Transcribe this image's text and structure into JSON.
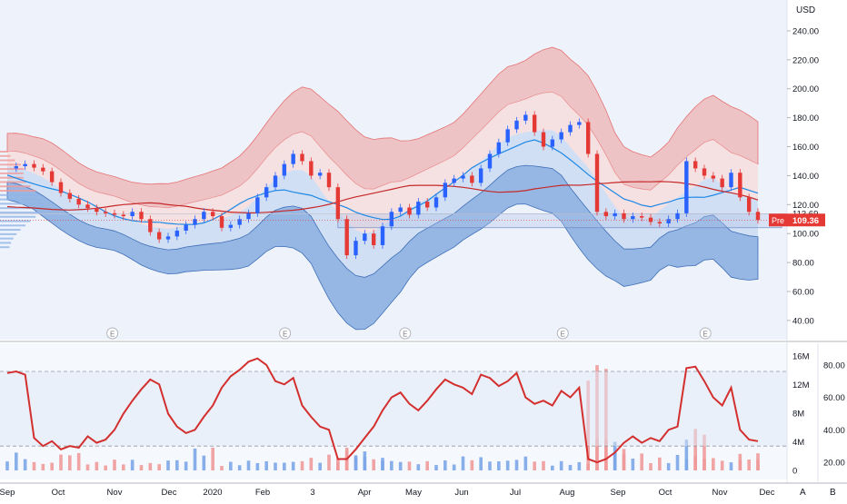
{
  "currency": "USD",
  "price_tag": {
    "label": "Pre",
    "value": "109.36"
  },
  "earnings_marker": "E",
  "scale_buttons": [
    "A",
    "B"
  ],
  "colors": {
    "up": "#2962ff",
    "down": "#e53935",
    "ma_blue": "#1e88e5",
    "ma_red": "#c62828",
    "band_red": "#ef9a9a",
    "band_blue": "#5c8fd6",
    "osc": "#d32f2f"
  },
  "chart_data": [
    {
      "type": "candlestick",
      "title": "",
      "x_labels": [
        "Sep",
        "Oct",
        "Nov",
        "Dec",
        "2020",
        "Feb",
        "3",
        "Apr",
        "May",
        "Jun",
        "Jul",
        "Aug",
        "Sep",
        "Oct",
        "Nov",
        "Dec"
      ],
      "y_ticks": [
        40,
        60,
        80,
        100,
        120,
        140,
        160,
        180,
        200,
        220,
        240
      ],
      "y_tick_labels": [
        "40.00",
        "60.00",
        "80.00",
        "100.00",
        "120.00",
        "140.00",
        "160.00",
        "180.00",
        "200.00",
        "220.00",
        "240.00"
      ],
      "ylim": [
        28,
        250
      ],
      "extra_label": "113.69",
      "current_price": 109.36,
      "price_path": [
        [
          0,
          145
        ],
        [
          2,
          148
        ],
        [
          4,
          143
        ],
        [
          6,
          128
        ],
        [
          8,
          120
        ],
        [
          10,
          115
        ],
        [
          12,
          113
        ],
        [
          13,
          112
        ],
        [
          14,
          115
        ],
        [
          15,
          110
        ],
        [
          16,
          101
        ],
        [
          17,
          96
        ],
        [
          18,
          98
        ],
        [
          19,
          102
        ],
        [
          20,
          106
        ],
        [
          21,
          110
        ],
        [
          22,
          115
        ],
        [
          23,
          112
        ],
        [
          24,
          104
        ],
        [
          25,
          106
        ],
        [
          26,
          110
        ],
        [
          27,
          114
        ],
        [
          28,
          125
        ],
        [
          29,
          132
        ],
        [
          30,
          140
        ],
        [
          31,
          148
        ],
        [
          32,
          155
        ],
        [
          33,
          150
        ],
        [
          34,
          140
        ],
        [
          35,
          142
        ],
        [
          36,
          132
        ],
        [
          37,
          110
        ],
        [
          38,
          85
        ],
        [
          39,
          95
        ],
        [
          40,
          100
        ],
        [
          41,
          92
        ],
        [
          42,
          105
        ],
        [
          43,
          115
        ],
        [
          44,
          118
        ],
        [
          45,
          113
        ],
        [
          46,
          122
        ],
        [
          47,
          118
        ],
        [
          48,
          125
        ],
        [
          49,
          135
        ],
        [
          50,
          138
        ],
        [
          51,
          140
        ],
        [
          52,
          135
        ],
        [
          53,
          145
        ],
        [
          54,
          155
        ],
        [
          55,
          163
        ],
        [
          56,
          172
        ],
        [
          57,
          178
        ],
        [
          58,
          182
        ],
        [
          59,
          170
        ],
        [
          60,
          160
        ],
        [
          61,
          165
        ],
        [
          62,
          170
        ],
        [
          63,
          175
        ],
        [
          64,
          177
        ],
        [
          65,
          155
        ],
        [
          66,
          115
        ],
        [
          67,
          112
        ],
        [
          68,
          114
        ],
        [
          69,
          110
        ],
        [
          70,
          112
        ],
        [
          71,
          111
        ],
        [
          72,
          108
        ],
        [
          73,
          107
        ],
        [
          74,
          110
        ],
        [
          75,
          114
        ],
        [
          76,
          150
        ],
        [
          77,
          145
        ],
        [
          78,
          140
        ],
        [
          79,
          138
        ],
        [
          80,
          132
        ],
        [
          81,
          142
        ],
        [
          82,
          125
        ],
        [
          83,
          115
        ],
        [
          84,
          109.36
        ]
      ]
    },
    {
      "type": "bar+line",
      "title": "",
      "left_ticks": [
        0,
        4,
        8,
        12,
        16
      ],
      "left_tick_labels": [
        "0",
        "4M",
        "8M",
        "12M",
        "16M"
      ],
      "right_ticks": [
        20,
        40,
        60,
        80
      ],
      "right_tick_labels": [
        "20.00",
        "40.00",
        "60.00",
        "80.00"
      ],
      "oscillator": [
        [
          0,
          75
        ],
        [
          1,
          76
        ],
        [
          2,
          74
        ],
        [
          3,
          35
        ],
        [
          4,
          30
        ],
        [
          5,
          33
        ],
        [
          6,
          28
        ],
        [
          7,
          30
        ],
        [
          8,
          29
        ],
        [
          9,
          36
        ],
        [
          10,
          32
        ],
        [
          11,
          34
        ],
        [
          12,
          40
        ],
        [
          13,
          50
        ],
        [
          14,
          58
        ],
        [
          15,
          65
        ],
        [
          16,
          71
        ],
        [
          17,
          68
        ],
        [
          18,
          50
        ],
        [
          19,
          42
        ],
        [
          20,
          38
        ],
        [
          21,
          40
        ],
        [
          22,
          48
        ],
        [
          23,
          55
        ],
        [
          24,
          66
        ],
        [
          25,
          73
        ],
        [
          26,
          77
        ],
        [
          27,
          82
        ],
        [
          28,
          84
        ],
        [
          29,
          80
        ],
        [
          30,
          70
        ],
        [
          31,
          68
        ],
        [
          32,
          72
        ],
        [
          33,
          55
        ],
        [
          34,
          48
        ],
        [
          35,
          42
        ],
        [
          36,
          40
        ],
        [
          37,
          22
        ],
        [
          38,
          22
        ],
        [
          39,
          28
        ],
        [
          40,
          35
        ],
        [
          41,
          42
        ],
        [
          42,
          52
        ],
        [
          43,
          60
        ],
        [
          44,
          63
        ],
        [
          45,
          56
        ],
        [
          46,
          52
        ],
        [
          47,
          58
        ],
        [
          48,
          65
        ],
        [
          49,
          71
        ],
        [
          50,
          68
        ],
        [
          51,
          66
        ],
        [
          52,
          62
        ],
        [
          53,
          74
        ],
        [
          54,
          72
        ],
        [
          55,
          67
        ],
        [
          56,
          70
        ],
        [
          57,
          75
        ],
        [
          58,
          60
        ],
        [
          59,
          56
        ],
        [
          60,
          58
        ],
        [
          61,
          55
        ],
        [
          62,
          64
        ],
        [
          63,
          60
        ],
        [
          64,
          66
        ],
        [
          65,
          22
        ],
        [
          66,
          20
        ],
        [
          67,
          22
        ],
        [
          68,
          26
        ],
        [
          69,
          32
        ],
        [
          70,
          36
        ],
        [
          71,
          32
        ],
        [
          72,
          35
        ],
        [
          73,
          33
        ],
        [
          74,
          40
        ],
        [
          75,
          42
        ],
        [
          76,
          78
        ],
        [
          77,
          79
        ],
        [
          78,
          70
        ],
        [
          79,
          60
        ],
        [
          80,
          55
        ],
        [
          81,
          66
        ],
        [
          82,
          40
        ],
        [
          83,
          34
        ],
        [
          84,
          33
        ]
      ],
      "volume": [
        [
          0,
          2.5
        ],
        [
          3,
          1.2
        ],
        [
          6,
          2.6
        ],
        [
          9,
          1.2
        ],
        [
          12,
          1.5
        ],
        [
          15,
          1.1
        ],
        [
          18,
          1.6
        ],
        [
          21,
          3.2
        ],
        [
          24,
          1.2
        ],
        [
          27,
          1.4
        ],
        [
          30,
          1.3
        ],
        [
          33,
          1.8
        ],
        [
          36,
          2.2
        ],
        [
          37,
          3.2
        ],
        [
          38,
          2.8
        ],
        [
          40,
          2.0
        ],
        [
          42,
          1.5
        ],
        [
          45,
          1.3
        ],
        [
          48,
          1.4
        ],
        [
          51,
          2.0
        ],
        [
          54,
          1.5
        ],
        [
          57,
          2.0
        ],
        [
          60,
          1.3
        ],
        [
          63,
          1.2
        ],
        [
          65,
          16.5
        ],
        [
          66,
          5.0
        ],
        [
          67,
          3.2
        ],
        [
          69,
          2.4
        ],
        [
          72,
          1.8
        ],
        [
          75,
          2.2
        ],
        [
          76,
          6.2
        ],
        [
          77,
          2.0
        ],
        [
          80,
          1.5
        ],
        [
          82,
          2.4
        ],
        [
          84,
          1.5
        ]
      ],
      "dashed_levels": [
        76,
        30
      ]
    }
  ]
}
